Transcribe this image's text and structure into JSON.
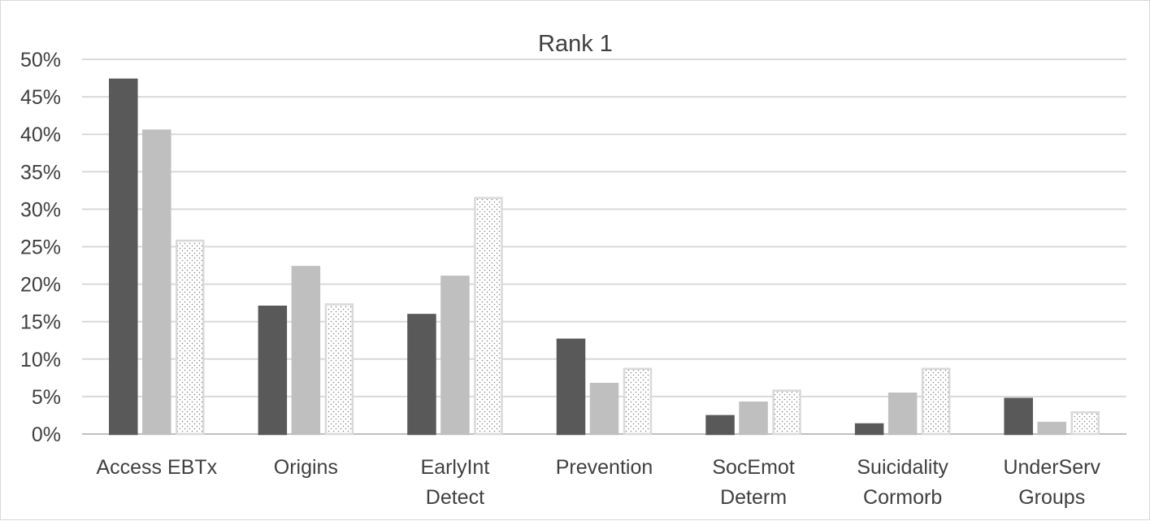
{
  "chart_data": {
    "type": "bar",
    "title": "Rank 1",
    "xlabel": "",
    "ylabel": "",
    "ylim": [
      0,
      0.5
    ],
    "y_ticks": [
      "0%",
      "5%",
      "10%",
      "15%",
      "20%",
      "25%",
      "30%",
      "35%",
      "40%",
      "45%",
      "50%"
    ],
    "grid": true,
    "legend": "none",
    "categories": [
      [
        "Access EBTx"
      ],
      [
        "Origins"
      ],
      [
        "EarlyInt",
        "Detect"
      ],
      [
        "Prevention"
      ],
      [
        "SocEmot",
        "Determ"
      ],
      [
        "Suicidality",
        "Cormorb"
      ],
      [
        "UnderServ",
        "Groups"
      ]
    ],
    "series": [
      {
        "values": [
          0.473,
          0.17,
          0.159,
          0.126,
          0.024,
          0.013,
          0.047
        ]
      },
      {
        "values": [
          0.405,
          0.223,
          0.21,
          0.067,
          0.042,
          0.054,
          0.015
        ]
      },
      {
        "values": [
          0.258,
          0.173,
          0.315,
          0.087,
          0.058,
          0.087,
          0.029
        ]
      }
    ],
    "colors": {
      "series": [
        "#595959",
        "#bfbfbf",
        "#ffffff"
      ],
      "series_stroke": [
        "#595959",
        "#bfbfbf",
        "#d9d9d9"
      ],
      "grid": "#d9d9d9",
      "text": "#404040"
    }
  }
}
